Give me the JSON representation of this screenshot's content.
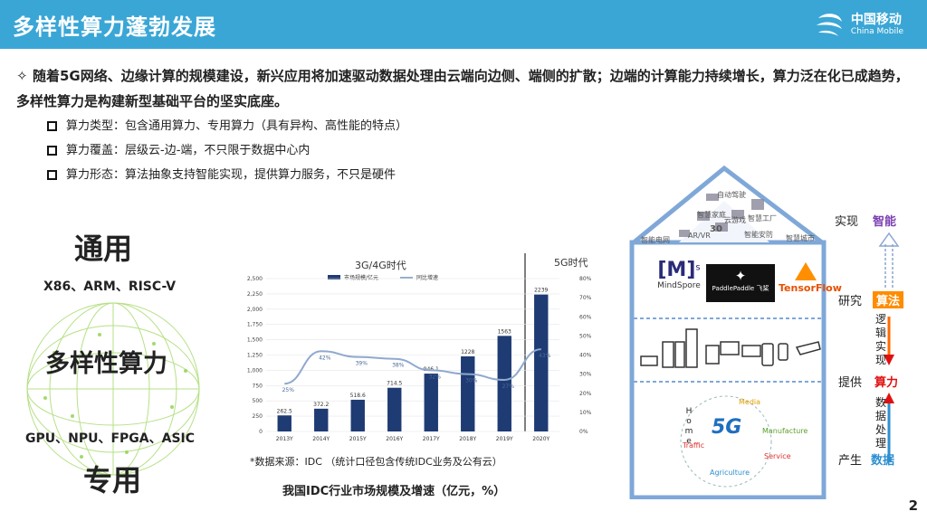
{
  "header": {
    "title": "多样性算力蓬勃发展",
    "logo_cn": "中国移动",
    "logo_en": "China Mobile"
  },
  "lead": {
    "text": "随着5G网络、边缘计算的规模建设，新兴应用将加速驱动数据处理由云端向边侧、端侧的扩散；边端的计算能力持续增长，算力泛在化已成趋势，多样性算力是构建新型基础平台的坚实底座。"
  },
  "bullets": [
    {
      "text": "算力类型：包含通用算力、专用算力（具有异构、高性能的特点）"
    },
    {
      "text": "算力覆盖：层级云-边-端，不只限于数据中心内"
    },
    {
      "text": "算力形态：算法抽象支持智能实现，提供算力服务，不只是硬件"
    }
  ],
  "left": {
    "general": "通用",
    "cpu_arch": "X86、ARM、RISC-V",
    "diverse": "多样性算力",
    "accel": "GPU、NPU、FPGA、ASIC",
    "special": "专用"
  },
  "chart_data": {
    "type": "bar",
    "era_labels": [
      "3G/4G时代",
      "5G时代"
    ],
    "legend": [
      "市场规模/亿元",
      "同比增速"
    ],
    "categories": [
      "2013Y",
      "2014Y",
      "2015Y",
      "2016Y",
      "2017Y",
      "2018Y",
      "2019Y",
      "2020Y"
    ],
    "series": [
      {
        "name": "市场规模/亿元",
        "type": "bar",
        "values": [
          262.5,
          372.2,
          518.6,
          714.5,
          946.1,
          1228,
          1563,
          2239
        ],
        "labels": [
          "262.5",
          "372.2",
          "518.6",
          "714.5",
          "946.1",
          "1228",
          "1563",
          "2239"
        ]
      },
      {
        "name": "同比增速",
        "type": "line",
        "values": [
          25,
          42,
          39,
          38,
          32,
          30,
          27,
          43
        ],
        "labels": [
          "25%",
          "42%",
          "39%",
          "38%",
          "32%",
          "30%",
          "27%",
          "43%"
        ]
      }
    ],
    "y_left": {
      "ticks": [
        "0",
        "250",
        "500",
        "750",
        "1,000",
        "1,250",
        "1,500",
        "1,750",
        "2,000",
        "2,250",
        "2,500"
      ],
      "lim": [
        0,
        2500
      ]
    },
    "y_right": {
      "ticks": [
        "0%",
        "10%",
        "20%",
        "30%",
        "40%",
        "50%",
        "60%",
        "70%",
        "80%"
      ],
      "lim": [
        0,
        80
      ]
    },
    "colors": {
      "bar": "#1f3b73",
      "line": "#8fa9cf"
    }
  },
  "chart": {
    "source": "*数据来源：IDC （统计口径包含传统IDC业务及公有云）",
    "caption": "我国IDC行业市场规模及增速（亿元，%）"
  },
  "house": {
    "roof_apps": [
      "自动驾驶",
      "智慧家庭",
      "云游戏",
      "智慧工厂",
      "AR/VR",
      "智能电网",
      "智能安防",
      "智慧城市"
    ],
    "roof_extra": "30",
    "brands": [
      "MindSpore",
      "PaddlePaddle 飞桨",
      "TensorFlow"
    ],
    "ms_logo": "[M]",
    "ms_sup": "s",
    "iot": [
      "Media",
      "Home",
      "Manufacture",
      "Traffic",
      "Service",
      "Agriculture"
    ],
    "iot_center": "5G",
    "rows": [
      {
        "action": "实现",
        "value": "智能",
        "color": "#7b3fb0"
      },
      {
        "action": "研究",
        "value": "算法",
        "color": "#ff6a00"
      },
      {
        "action": "提供",
        "value": "算力",
        "color": "#e01010"
      },
      {
        "action": "产生",
        "value": "数据",
        "color": "#2e8fd0"
      }
    ],
    "vert1": "逻辑实现",
    "vert2": "数据处理"
  },
  "page_number": "2"
}
